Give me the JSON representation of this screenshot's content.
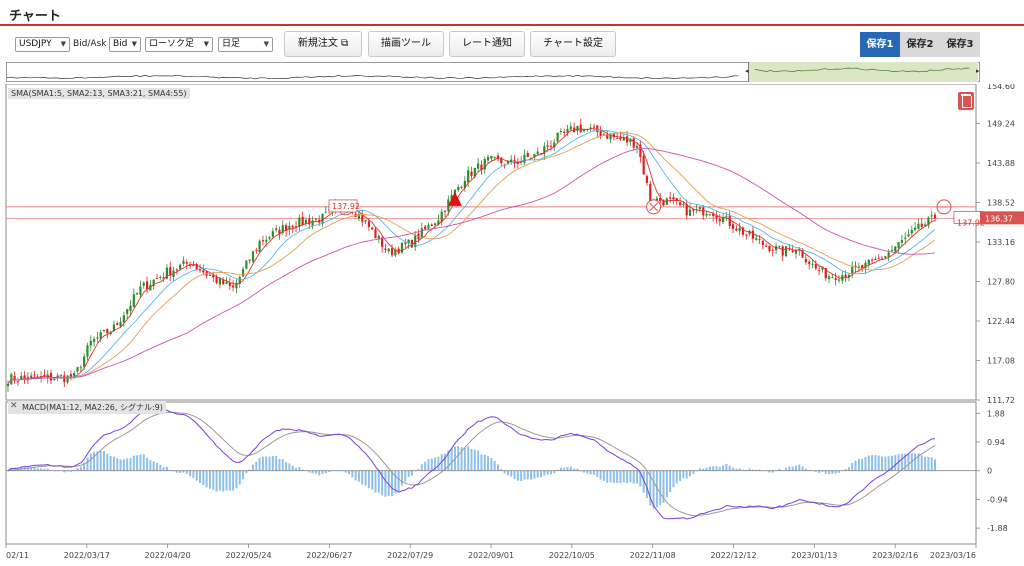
{
  "page_title": "チャート",
  "toolbar": {
    "pair": "USDJPY",
    "bidask_label": "Bid/Ask",
    "bidask": "Bid",
    "chart_type": "ローソク足",
    "timeframe": "日足",
    "buttons": [
      "新規注文",
      "描画ツール",
      "レート通知",
      "チャート設定"
    ],
    "saves": [
      "保存1",
      "保存2",
      "保存3"
    ]
  },
  "indicators": {
    "sma_label": "SMA(SMA1:5, SMA2:13, SMA3:21, SMA4:55)",
    "macd_label": "MACD(MA1:12, MA2:26, シグナル:9)"
  },
  "annotations": {
    "line_label_left": "137.92",
    "line_label_right": "137.92",
    "current_price": "136.37",
    "top_clipped_tick": "154.60"
  },
  "colors": {
    "accent": "#c9302c",
    "save_active": "#2769b6",
    "candle_up": "#2e8b2e",
    "candle_down": "#e02020",
    "sma1": "#e03030",
    "sma2": "#5ab4e6",
    "sma3": "#e0a050",
    "sma4": "#d050b0",
    "macd": "#7b3fe0",
    "signal": "#999999",
    "hist": "#8ec0ec",
    "hline": "#e88080"
  },
  "chart_data": {
    "type": "candlestick",
    "price_axis": {
      "ticks": [
        "149.24",
        "143.88",
        "138.52",
        "133.16",
        "127.80",
        "122.44",
        "117.08",
        "111.72"
      ],
      "range": [
        111.72,
        154.6
      ]
    },
    "macd_axis": {
      "ticks": [
        "1.88",
        "0.94",
        "0",
        "-0.94",
        "-1.88"
      ],
      "range": [
        -2.4,
        2.25
      ]
    },
    "x_ticks": [
      "02/11",
      "2022/03/17",
      "2022/04/20",
      "2022/05/24",
      "2022/06/27",
      "2022/07/29",
      "2022/09/01",
      "2022/10/05",
      "2022/11/08",
      "2022/12/12",
      "2023/01/13",
      "2023/02/16",
      "2023/03/16"
    ],
    "close_anchors": [
      [
        0,
        114.6
      ],
      [
        20,
        114.8
      ],
      [
        25,
        119.5
      ],
      [
        32,
        121.5
      ],
      [
        40,
        126.8
      ],
      [
        48,
        129.1
      ],
      [
        55,
        130.4
      ],
      [
        62,
        128.2
      ],
      [
        68,
        126.8
      ],
      [
        76,
        133.2
      ],
      [
        85,
        135.5
      ],
      [
        95,
        136.4
      ],
      [
        102,
        138.7
      ],
      [
        108,
        135.8
      ],
      [
        115,
        131.7
      ],
      [
        122,
        133.1
      ],
      [
        130,
        136.5
      ],
      [
        138,
        142.0
      ],
      [
        145,
        144.2
      ],
      [
        152,
        143.8
      ],
      [
        160,
        145.1
      ],
      [
        166,
        147.3
      ],
      [
        172,
        148.7
      ],
      [
        178,
        148.1
      ],
      [
        184,
        147.2
      ],
      [
        190,
        146.5
      ],
      [
        194,
        139.0
      ],
      [
        200,
        138.6
      ],
      [
        206,
        137.2
      ],
      [
        212,
        137.5
      ],
      [
        216,
        136.4
      ],
      [
        222,
        134.5
      ],
      [
        228,
        132.9
      ],
      [
        234,
        131.8
      ],
      [
        238,
        132.5
      ],
      [
        244,
        129.5
      ],
      [
        248,
        128.6
      ],
      [
        252,
        128.8
      ],
      [
        258,
        129.6
      ],
      [
        264,
        131.0
      ],
      [
        270,
        133.2
      ],
      [
        276,
        135.3
      ],
      [
        280,
        136.37
      ]
    ],
    "sma_lengths": [
      5,
      13,
      21,
      55
    ],
    "horizontal_line": 137.92,
    "markers": [
      {
        "type": "triangle-up",
        "bar": 135
      },
      {
        "type": "circle-x",
        "bar": 195
      }
    ]
  }
}
